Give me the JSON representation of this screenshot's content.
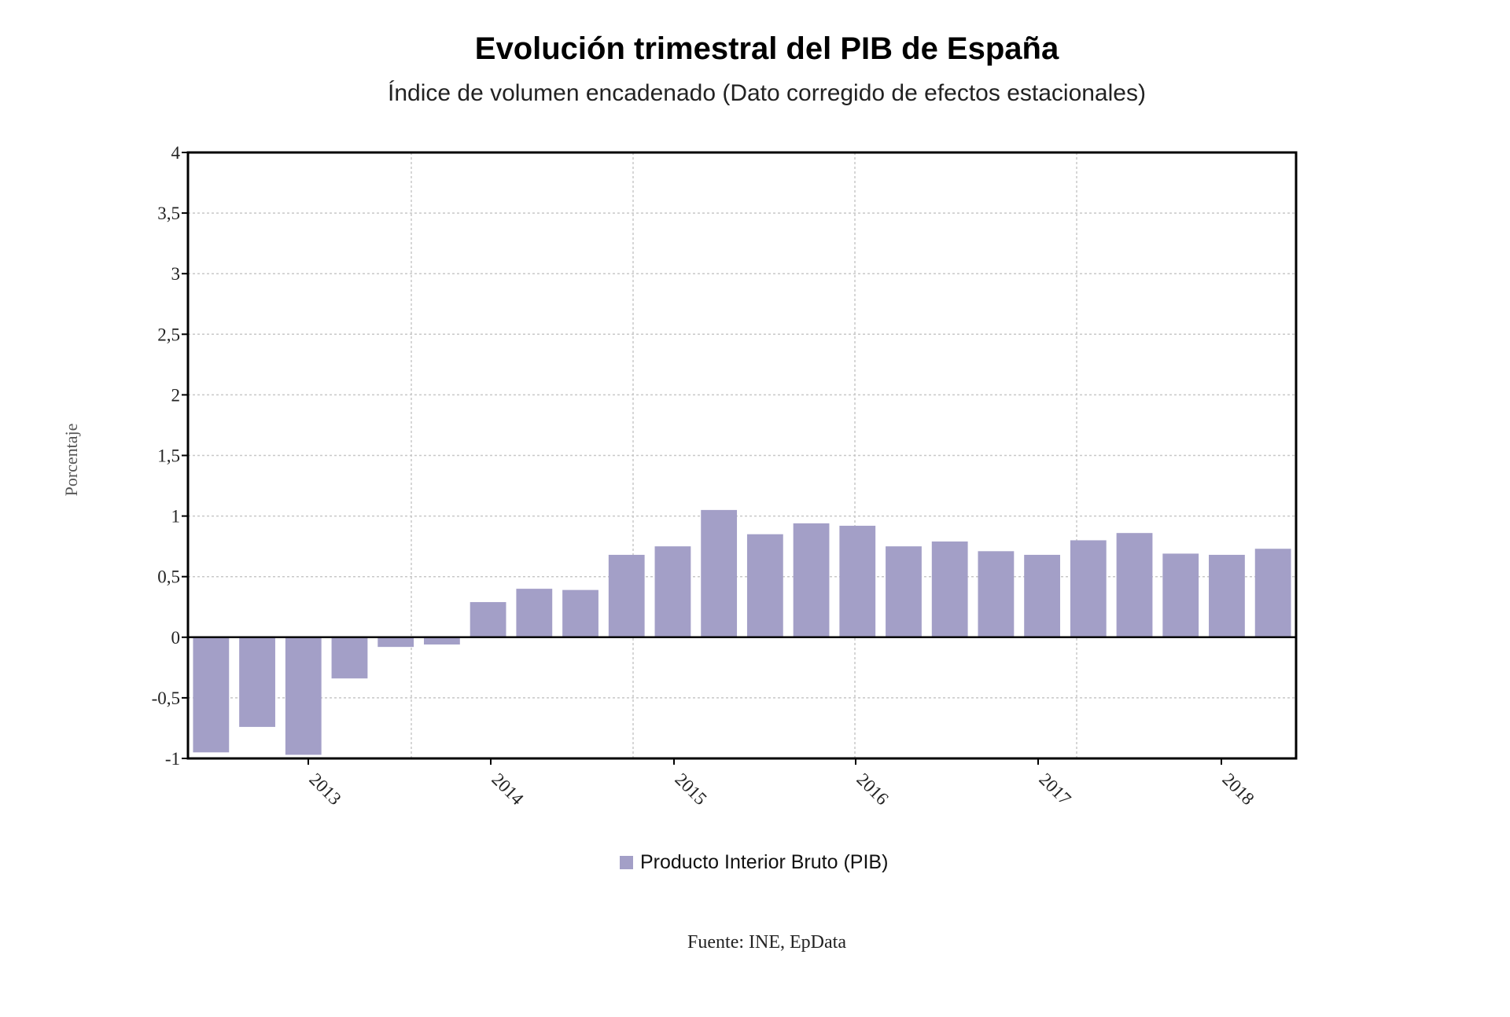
{
  "chart_data": {
    "type": "bar",
    "title": "Evolución trimestral del PIB de España",
    "subtitle": "Índice de volumen encadenado (Dato corregido de efectos estacionales)",
    "ylabel": "Porcentaje",
    "xlabel": "",
    "ylim": [
      -1,
      4
    ],
    "yticks": [
      "-1",
      "-0,5",
      "0",
      "0,5",
      "1",
      "1,5",
      "2",
      "2,5",
      "3",
      "3,5",
      "4"
    ],
    "xtick_labels": [
      "2013",
      "2014",
      "2015",
      "2016",
      "2017",
      "2018"
    ],
    "grid": true,
    "legend_position": "bottom-center",
    "series": [
      {
        "name": "Producto Interior Bruto (PIB)",
        "color": "#a39fc7",
        "values": [
          -0.95,
          -0.74,
          -0.97,
          -0.34,
          -0.08,
          -0.06,
          0.29,
          0.4,
          0.39,
          0.68,
          0.75,
          1.05,
          0.85,
          0.94,
          0.92,
          0.75,
          0.79,
          0.71,
          0.68,
          0.8,
          0.86,
          0.69,
          0.68,
          0.73
        ]
      }
    ],
    "source": "Fuente: INE, EpData"
  }
}
